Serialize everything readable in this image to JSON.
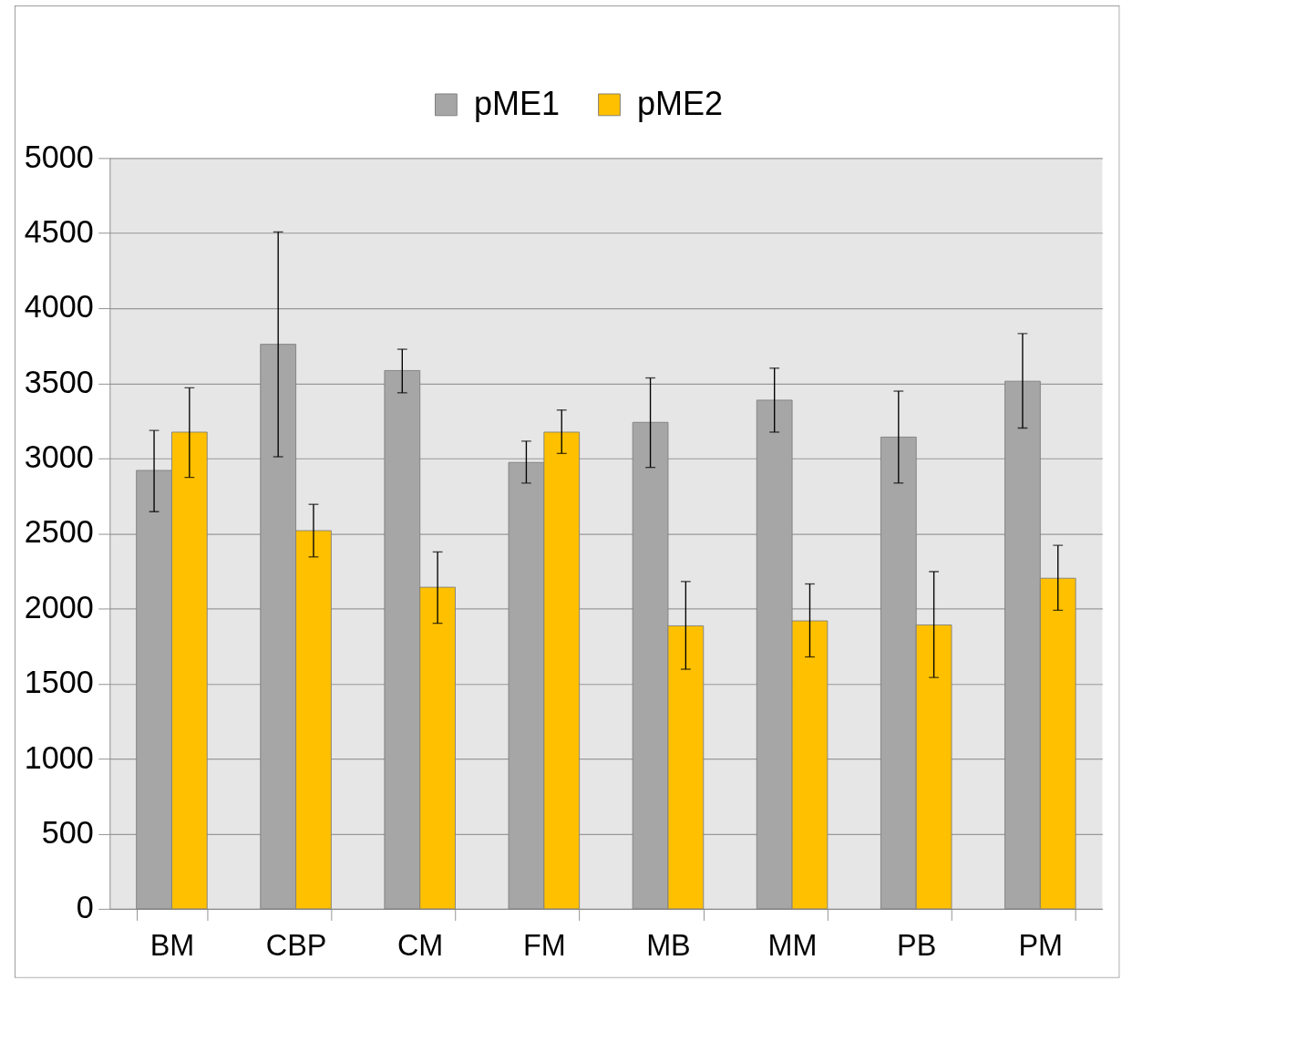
{
  "chart_data": {
    "type": "bar",
    "categories": [
      "BM",
      "CBP",
      "CM",
      "FM",
      "MB",
      "MM",
      "PB",
      "PM"
    ],
    "series": [
      {
        "name": "pME1",
        "color": "#a6a6a6",
        "values": [
          2920,
          3760,
          3585,
          2973,
          3240,
          3388,
          3142,
          3514
        ],
        "errors": [
          [
            2645,
            3186
          ],
          [
            3011,
            4508
          ],
          [
            3437,
            3727
          ],
          [
            2836,
            3115
          ],
          [
            2940,
            3536
          ],
          [
            3175,
            3601
          ],
          [
            2836,
            3448
          ],
          [
            3202,
            3831
          ]
        ]
      },
      {
        "name": "pME2",
        "color": "#ffc000",
        "values": [
          3175,
          2519,
          2142,
          3175,
          1885,
          1918,
          1891,
          2202
        ],
        "errors": [
          [
            2874,
            3470
          ],
          [
            2344,
            2694
          ],
          [
            1902,
            2377
          ],
          [
            3033,
            3322
          ],
          [
            1596,
            2180
          ],
          [
            1678,
            2164
          ],
          [
            1541,
            2246
          ],
          [
            1989,
            2421
          ]
        ]
      }
    ],
    "ylim": [
      0,
      5000
    ],
    "yticks": [
      0,
      500,
      1000,
      1500,
      2000,
      2500,
      3000,
      3500,
      4000,
      4500,
      5000
    ],
    "grid": "y",
    "legend": "top"
  }
}
